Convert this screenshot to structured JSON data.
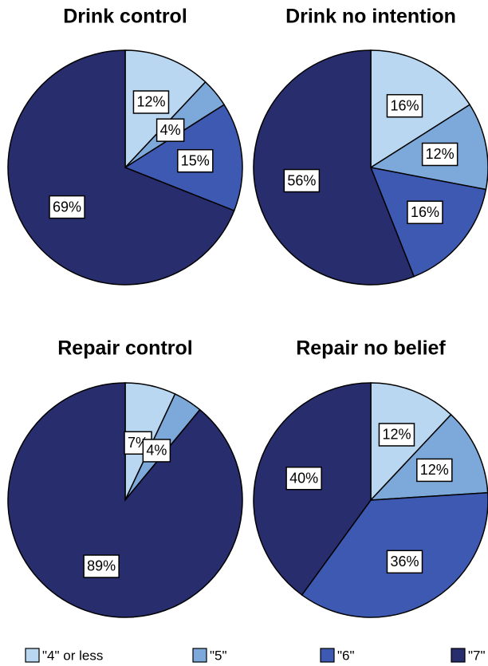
{
  "legend": {
    "categories": [
      "\"4\" or less",
      "\"5\"",
      "\"6\"",
      "\"7\""
    ],
    "colors": [
      "#b9d7f1",
      "#7ca9da",
      "#3e59b1",
      "#272d6d"
    ]
  },
  "chart_data": [
    {
      "type": "pie",
      "title": "Drink control",
      "values": [
        12,
        4,
        15,
        69
      ],
      "value_labels": [
        "12%",
        "4%",
        "15%",
        "69%"
      ]
    },
    {
      "type": "pie",
      "title": "Drink no intention",
      "values": [
        16,
        12,
        16,
        56
      ],
      "value_labels": [
        "16%",
        "12%",
        "16%",
        "56%"
      ]
    },
    {
      "type": "pie",
      "title": "Repair control",
      "values": [
        7,
        4,
        0,
        89
      ],
      "value_labels": [
        "7%",
        "4%",
        null,
        "89%"
      ]
    },
    {
      "type": "pie",
      "title": "Repair no belief",
      "values": [
        12,
        12,
        36,
        40
      ],
      "value_labels": [
        "12%",
        "12%",
        "36%",
        "40%"
      ]
    }
  ]
}
